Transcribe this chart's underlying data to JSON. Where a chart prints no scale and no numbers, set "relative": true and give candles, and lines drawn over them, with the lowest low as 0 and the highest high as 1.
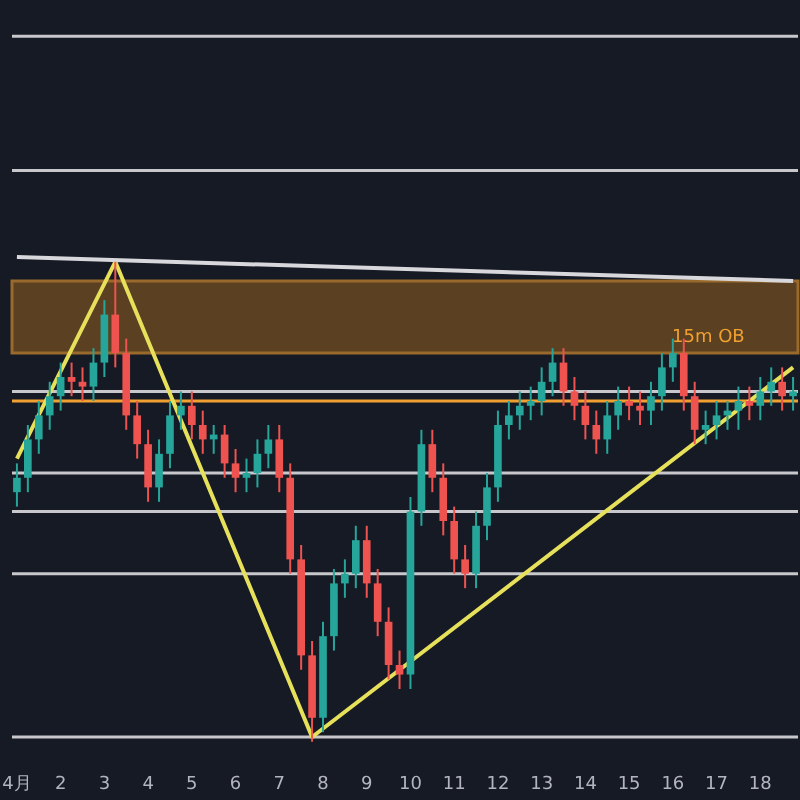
{
  "chart_data": {
    "type": "candlestick",
    "relative": true,
    "categories": [
      "4月",
      null,
      null,
      null,
      "2",
      null,
      null,
      null,
      "3",
      null,
      null,
      null,
      "4",
      null,
      null,
      null,
      "5",
      null,
      null,
      null,
      "6",
      null,
      null,
      null,
      "7",
      null,
      null,
      null,
      "8",
      null,
      null,
      null,
      "9",
      null,
      null,
      null,
      "10",
      null,
      null,
      null,
      "11",
      null,
      null,
      null,
      "12",
      null,
      null,
      null,
      "13",
      null,
      null,
      null,
      "14",
      null,
      null,
      null,
      "15",
      null,
      null,
      null,
      "16",
      null,
      null,
      null,
      "17",
      null,
      null,
      null,
      "18",
      null,
      null,
      null
    ],
    "ohlc": [
      [
        0.52,
        0.58,
        0.49,
        0.55
      ],
      [
        0.55,
        0.66,
        0.52,
        0.63
      ],
      [
        0.63,
        0.71,
        0.6,
        0.68
      ],
      [
        0.68,
        0.75,
        0.65,
        0.72
      ],
      [
        0.72,
        0.79,
        0.69,
        0.76
      ],
      [
        0.76,
        0.79,
        0.72,
        0.75
      ],
      [
        0.75,
        0.78,
        0.71,
        0.74
      ],
      [
        0.74,
        0.82,
        0.71,
        0.79
      ],
      [
        0.79,
        0.92,
        0.76,
        0.89
      ],
      [
        0.89,
        1,
        0.78,
        0.81
      ],
      [
        0.81,
        0.84,
        0.65,
        0.68
      ],
      [
        0.68,
        0.71,
        0.59,
        0.62
      ],
      [
        0.62,
        0.65,
        0.5,
        0.53
      ],
      [
        0.53,
        0.63,
        0.5,
        0.6
      ],
      [
        0.6,
        0.71,
        0.57,
        0.68
      ],
      [
        0.68,
        0.73,
        0.65,
        0.7
      ],
      [
        0.7,
        0.73,
        0.63,
        0.66
      ],
      [
        0.66,
        0.69,
        0.6,
        0.63
      ],
      [
        0.63,
        0.66,
        0.6,
        0.64
      ],
      [
        0.64,
        0.66,
        0.55,
        0.58
      ],
      [
        0.58,
        0.61,
        0.52,
        0.55
      ],
      [
        0.55,
        0.59,
        0.52,
        0.56
      ],
      [
        0.56,
        0.63,
        0.53,
        0.6
      ],
      [
        0.6,
        0.66,
        0.57,
        0.63
      ],
      [
        0.63,
        0.66,
        0.52,
        0.55
      ],
      [
        0.55,
        0.58,
        0.35,
        0.38
      ],
      [
        0.38,
        0.41,
        0.15,
        0.18
      ],
      [
        0.18,
        0.21,
        0,
        0.05
      ],
      [
        0.05,
        0.25,
        0.02,
        0.22
      ],
      [
        0.22,
        0.36,
        0.19,
        0.33
      ],
      [
        0.33,
        0.38,
        0.3,
        0.35
      ],
      [
        0.35,
        0.45,
        0.32,
        0.42
      ],
      [
        0.42,
        0.45,
        0.3,
        0.33
      ],
      [
        0.33,
        0.36,
        0.22,
        0.25
      ],
      [
        0.25,
        0.28,
        0.13,
        0.16
      ],
      [
        0.16,
        0.19,
        0.11,
        0.14
      ],
      [
        0.14,
        0.51,
        0.11,
        0.48
      ],
      [
        0.48,
        0.65,
        0.45,
        0.62
      ],
      [
        0.62,
        0.65,
        0.52,
        0.55
      ],
      [
        0.55,
        0.58,
        0.43,
        0.46
      ],
      [
        0.46,
        0.49,
        0.35,
        0.38
      ],
      [
        0.38,
        0.41,
        0.32,
        0.35
      ],
      [
        0.35,
        0.48,
        0.32,
        0.45
      ],
      [
        0.45,
        0.56,
        0.42,
        0.53
      ],
      [
        0.53,
        0.69,
        0.5,
        0.66
      ],
      [
        0.66,
        0.71,
        0.63,
        0.68
      ],
      [
        0.68,
        0.73,
        0.65,
        0.7
      ],
      [
        0.7,
        0.74,
        0.67,
        0.71
      ],
      [
        0.71,
        0.78,
        0.68,
        0.75
      ],
      [
        0.75,
        0.82,
        0.72,
        0.79
      ],
      [
        0.79,
        0.82,
        0.7,
        0.73
      ],
      [
        0.73,
        0.76,
        0.67,
        0.7
      ],
      [
        0.7,
        0.73,
        0.63,
        0.66
      ],
      [
        0.66,
        0.69,
        0.6,
        0.63
      ],
      [
        0.63,
        0.71,
        0.6,
        0.68
      ],
      [
        0.68,
        0.74,
        0.65,
        0.71
      ],
      [
        0.71,
        0.74,
        0.67,
        0.7
      ],
      [
        0.7,
        0.73,
        0.66,
        0.69
      ],
      [
        0.69,
        0.75,
        0.66,
        0.72
      ],
      [
        0.72,
        0.81,
        0.69,
        0.78
      ],
      [
        0.78,
        0.84,
        0.75,
        0.81
      ],
      [
        0.81,
        0.84,
        0.69,
        0.72
      ],
      [
        0.72,
        0.75,
        0.62,
        0.65
      ],
      [
        0.65,
        0.69,
        0.62,
        0.66
      ],
      [
        0.66,
        0.71,
        0.63,
        0.68
      ],
      [
        0.68,
        0.71,
        0.65,
        0.69
      ],
      [
        0.69,
        0.74,
        0.65,
        0.71
      ],
      [
        0.71,
        0.74,
        0.67,
        0.7
      ],
      [
        0.7,
        0.76,
        0.67,
        0.73
      ],
      [
        0.73,
        0.78,
        0.7,
        0.75
      ],
      [
        0.75,
        0.78,
        0.69,
        0.72
      ],
      [
        0.72,
        0.76,
        0.69,
        0.73
      ]
    ],
    "series": [
      {
        "type": "line",
        "color": "#e6e05a",
        "values": [
          0.59,
          null,
          null,
          null,
          null,
          null,
          null,
          null,
          null,
          1,
          null,
          null,
          null,
          null,
          null,
          null,
          null,
          null,
          null,
          null,
          null,
          null,
          null,
          null,
          null,
          null,
          null,
          0.01,
          null,
          null,
          null,
          null,
          null,
          null,
          null,
          null,
          null,
          null,
          null,
          null,
          null,
          null,
          null,
          null,
          null,
          null,
          null,
          null,
          null,
          null,
          null,
          null,
          null,
          null,
          null,
          null,
          null,
          null,
          null,
          null,
          null,
          null,
          null,
          null,
          null,
          null,
          null,
          null,
          null,
          null,
          null,
          0.78
        ]
      },
      {
        "type": "line",
        "color": "#d8d8dc",
        "values": [
          1.01,
          null,
          null,
          null,
          null,
          null,
          null,
          null,
          null,
          null,
          null,
          null,
          null,
          null,
          null,
          null,
          null,
          null,
          null,
          null,
          null,
          null,
          null,
          null,
          null,
          null,
          null,
          null,
          null,
          null,
          null,
          null,
          null,
          null,
          null,
          null,
          null,
          null,
          null,
          null,
          null,
          null,
          null,
          null,
          null,
          null,
          null,
          null,
          null,
          null,
          null,
          null,
          null,
          null,
          null,
          null,
          null,
          null,
          null,
          null,
          null,
          null,
          null,
          null,
          null,
          null,
          null,
          null,
          null,
          null,
          null,
          0.96
        ]
      }
    ],
    "ref_lines": [
      {
        "axis": "y",
        "value": 1.47,
        "color": "#c8c8cc"
      },
      {
        "axis": "y",
        "value": 1.19,
        "color": "#c8c8cc"
      },
      {
        "axis": "y",
        "value": 0.73,
        "color": "#c8c8cc"
      },
      {
        "axis": "y",
        "value": 0.56,
        "color": "#c8c8cc"
      },
      {
        "axis": "y",
        "value": 0.48,
        "color": "#c8c8cc"
      },
      {
        "axis": "y",
        "value": 0.35,
        "color": "#c8c8cc"
      },
      {
        "axis": "y",
        "value": 0.01,
        "color": "#c8c8cc"
      },
      {
        "axis": "y",
        "value": 0.71,
        "color": "#f0a030"
      }
    ],
    "bands": [
      {
        "axis": "y",
        "from": 0.81,
        "to": 0.96,
        "color": "#8a5a20"
      }
    ],
    "annotations": [
      "15m OB"
    ]
  }
}
